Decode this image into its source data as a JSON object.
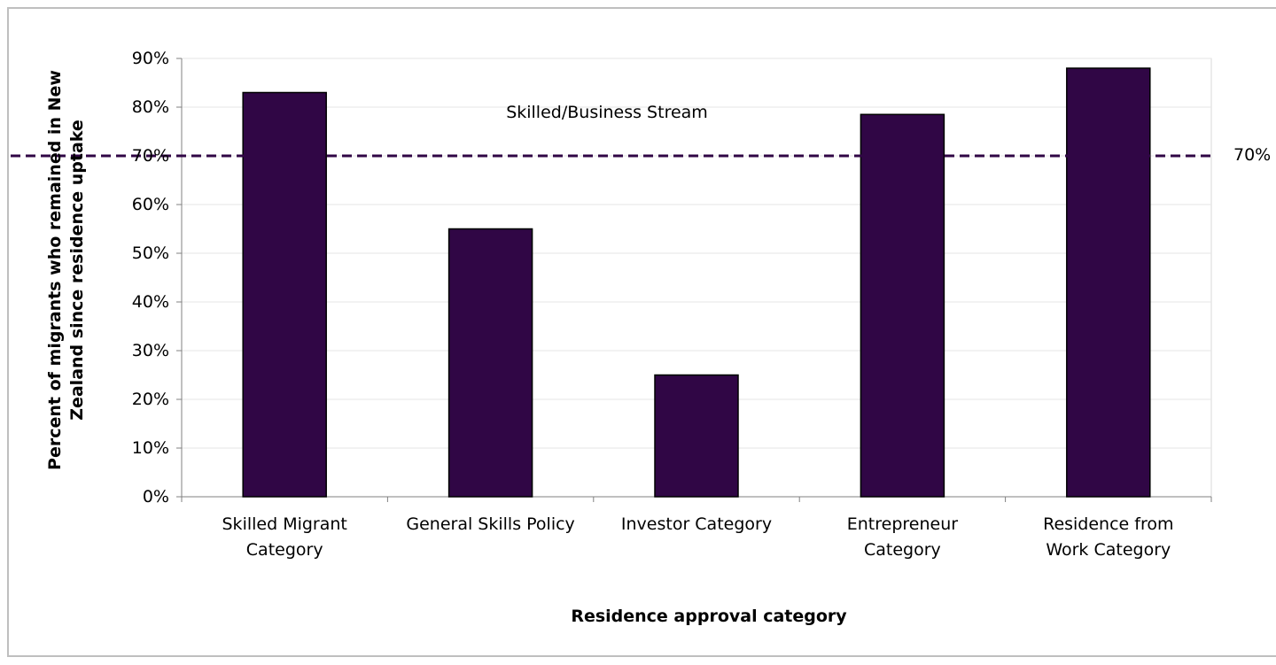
{
  "chart_data": {
    "type": "bar",
    "y_label": "Percent of migrants who remained in New Zealand since residence uptake",
    "x_label": "Residence approval category",
    "categories": [
      "Skilled Migrant Category",
      "General Skills Policy",
      "Investor Category",
      "Entrepreneur Category",
      "Residence from Work Category"
    ],
    "values": [
      83,
      55,
      25,
      78.5,
      88
    ],
    "color": "#300645",
    "ylim": [
      0,
      90
    ],
    "yticks": [
      {
        "value": 0,
        "label": "0%"
      },
      {
        "value": 10,
        "label": "10%"
      },
      {
        "value": 20,
        "label": "20%"
      },
      {
        "value": 30,
        "label": "30%"
      },
      {
        "value": 40,
        "label": "40%"
      },
      {
        "value": 50,
        "label": "50%"
      },
      {
        "value": 60,
        "label": "60%"
      },
      {
        "value": 70,
        "label": "70%"
      },
      {
        "value": 80,
        "label": "80%"
      },
      {
        "value": 90,
        "label": "90%"
      }
    ],
    "grid": true,
    "reference_line": {
      "value": 70,
      "label": "70%"
    },
    "annotation": "Skilled/Business Stream"
  }
}
